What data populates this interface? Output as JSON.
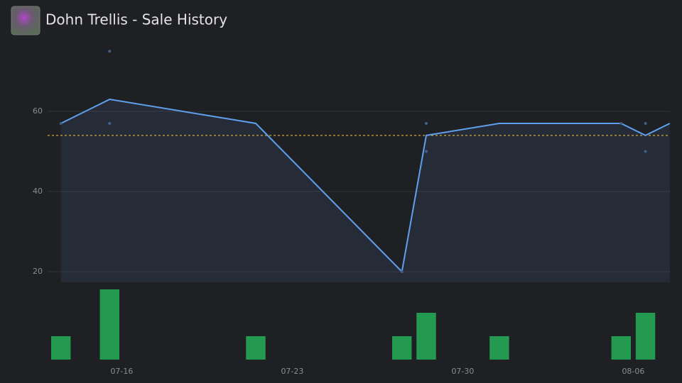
{
  "chart_data": {
    "type": "line",
    "title": "Dohn Trellis - Sale History",
    "x": [
      "07-13",
      "07-15",
      "07-21",
      "07-27",
      "07-28",
      "07-31",
      "08-05",
      "08-06",
      "08-07"
    ],
    "values": [
      57,
      63,
      57,
      20,
      54,
      57,
      57,
      54,
      57
    ],
    "color": "#5fa0ee",
    "area": true,
    "sales_x": [
      "07-13",
      "07-15",
      "07-15",
      "07-15",
      "07-27",
      "07-28",
      "07-28",
      "08-05",
      "08-06",
      "08-06"
    ],
    "sales_values": [
      57,
      57,
      57,
      75,
      20,
      57,
      50,
      57,
      57,
      50
    ],
    "sales_color": "#3f5f8a",
    "average": 54,
    "average_color": "#e8b830",
    "volume": [
      1,
      3,
      1,
      1,
      2,
      1,
      1,
      2,
      null
    ],
    "volume_color": "#239a4f",
    "volume_lim": [
      0,
      3
    ],
    "xlim": [
      "07-11",
      "08-08"
    ],
    "xticks": [
      "07-16",
      "07-23",
      "07-30",
      "08-06"
    ],
    "ylim": [
      17,
      80
    ],
    "yticks": [
      20,
      40,
      60
    ],
    "grid": true
  }
}
